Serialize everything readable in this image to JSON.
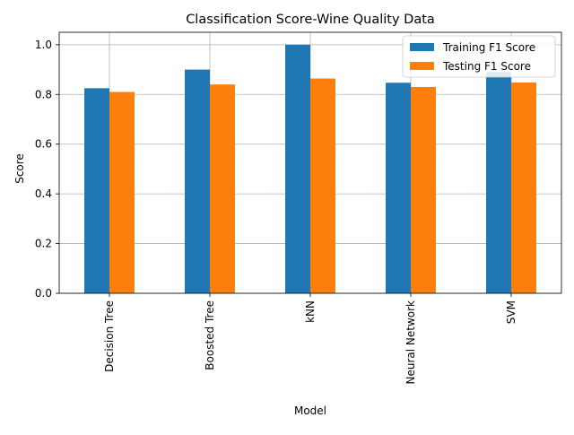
{
  "chart_data": {
    "type": "bar",
    "title": "Classification Score-Wine Quality Data",
    "xlabel": "Model",
    "ylabel": "Score",
    "categories": [
      "Decision Tree",
      "Boosted Tree",
      "kNN",
      "Neural Network",
      "SVM"
    ],
    "series": [
      {
        "name": "Training F1 Score",
        "color": "#1f77b4",
        "values": [
          0.825,
          0.9,
          1.0,
          0.847,
          0.89
        ]
      },
      {
        "name": "Testing F1 Score",
        "color": "#ff7f0e",
        "values": [
          0.81,
          0.84,
          0.864,
          0.83,
          0.848
        ]
      }
    ],
    "ylim": [
      0,
      1.05
    ],
    "yticks": [
      0.0,
      0.2,
      0.4,
      0.6,
      0.8,
      1.0
    ],
    "ytick_labels": [
      "0.0",
      "0.2",
      "0.4",
      "0.6",
      "0.8",
      "1.0"
    ],
    "grid": true,
    "legend_position": "top-right"
  }
}
